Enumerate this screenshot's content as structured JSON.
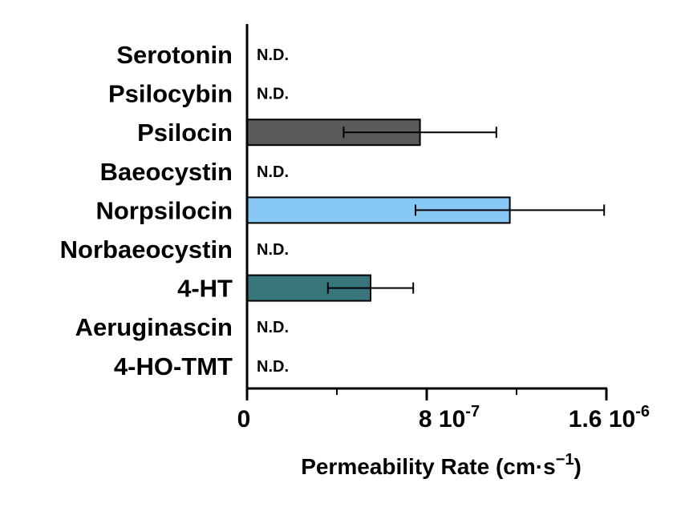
{
  "chart_data": {
    "type": "bar",
    "orientation": "horizontal",
    "categories": [
      "Serotonin",
      "Psilocybin",
      "Psilocin",
      "Baeocystin",
      "Norpsilocin",
      "Norbaeocystin",
      "4-HT",
      "Aeruginascin",
      "4-HO-TMT"
    ],
    "values": [
      null,
      null,
      7.7e-07,
      null,
      1.17e-06,
      null,
      5.5e-07,
      null,
      null
    ],
    "errors": [
      null,
      null,
      3.4e-07,
      null,
      4.2e-07,
      null,
      1.9e-07,
      null,
      null
    ],
    "not_detected_label": "N.D.",
    "bar_colors": [
      "#000000",
      "#000000",
      "#5a5a5a",
      "#000000",
      "#87c8f5",
      "#000000",
      "#37767a",
      "#000000",
      "#000000"
    ],
    "xlim": [
      0,
      1.6e-06
    ],
    "major_ticks": [
      0,
      8e-07,
      1.6e-06
    ],
    "minor_ticks": [
      4e-07,
      1.2e-06
    ],
    "tick_labels": [
      {
        "value": 0,
        "mantissa": "0",
        "exponent": ""
      },
      {
        "value": 8e-07,
        "mantissa": "8 10",
        "exponent": "-7"
      },
      {
        "value": 1.6e-06,
        "mantissa": "1.6 10",
        "exponent": "-6"
      }
    ],
    "xlabel": {
      "main": "Permeability Rate (cm·s",
      "sup": "−1",
      "close": ")"
    },
    "ylabel": "",
    "title": "",
    "grid": false,
    "legend": false
  }
}
